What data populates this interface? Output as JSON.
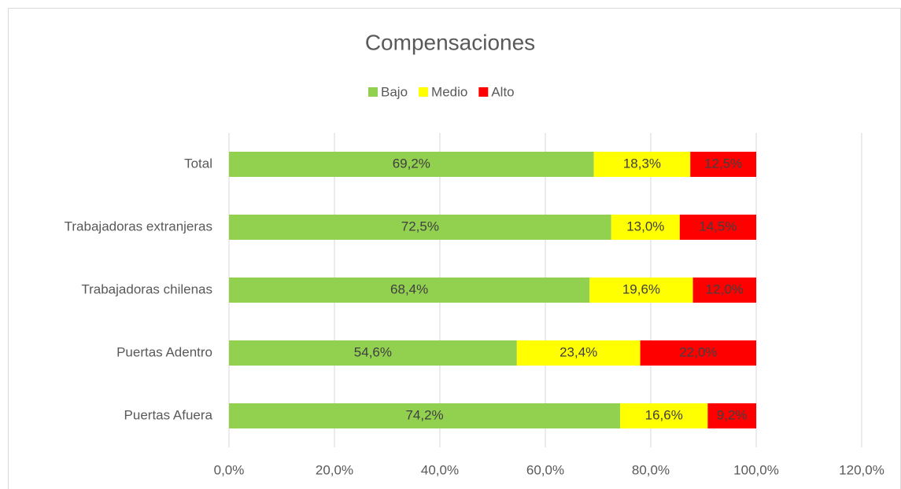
{
  "chart_data": {
    "type": "stacked_barh",
    "title": "Compensaciones",
    "categories": [
      "Total",
      "Trabajadoras extranjeras",
      "Trabajadoras chilenas",
      "Puertas Adentro",
      "Puertas Afuera"
    ],
    "series": [
      {
        "name": "Bajo",
        "color": "#92d050",
        "values": [
          69.2,
          72.5,
          68.4,
          54.6,
          74.2
        ],
        "value_labels": [
          "69,2%",
          "72,5%",
          "68,4%",
          "54,6%",
          "74,2%"
        ]
      },
      {
        "name": "Medio",
        "color": "#ffff00",
        "values": [
          18.3,
          13.0,
          19.6,
          23.4,
          16.6
        ],
        "value_labels": [
          "18,3%",
          "13,0%",
          "19,6%",
          "23,4%",
          "16,6%"
        ]
      },
      {
        "name": "Alto",
        "color": "#ff0000",
        "values": [
          12.5,
          14.5,
          12.0,
          22.0,
          9.2
        ],
        "value_labels": [
          "12,5%",
          "14,5%",
          "12,0%",
          "22,0%",
          "9,2%"
        ]
      }
    ],
    "xlim": [
      0,
      120
    ],
    "xticks": [
      {
        "value": 0,
        "label": "0,0%"
      },
      {
        "value": 20,
        "label": "20,0%"
      },
      {
        "value": 40,
        "label": "40,0%"
      },
      {
        "value": 60,
        "label": "60,0%"
      },
      {
        "value": 80,
        "label": "80,0%"
      },
      {
        "value": 100,
        "label": "100,0%"
      },
      {
        "value": 120,
        "label": "120,0%"
      }
    ],
    "grid": true,
    "legend": "top"
  }
}
